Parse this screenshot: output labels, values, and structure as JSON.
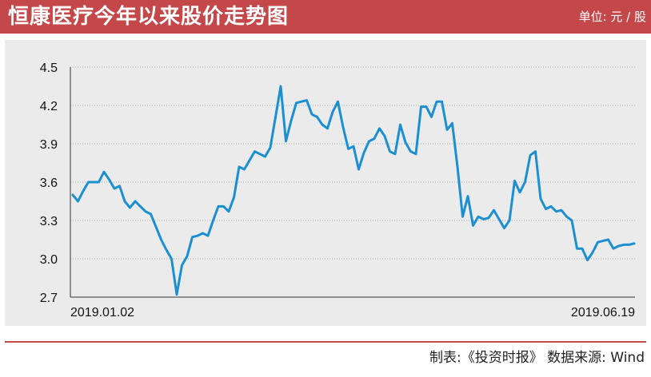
{
  "header": {
    "title": "恒康医疗今年以来股价走势图",
    "unit": "单位: 元 / 股"
  },
  "footer": {
    "source": "制表:《投资时报》 数据来源: Wind"
  },
  "colors": {
    "header_bg": "#c4474a",
    "panel_bg": "#ebebeb",
    "line": "#1c8fd0",
    "grid": "#aaaaaa"
  },
  "chart_data": {
    "type": "line",
    "x_start_label": "2019.01.02",
    "x_end_label": "2019.06.19",
    "ylim": [
      2.7,
      4.5
    ],
    "yticks": [
      "2.7",
      "3.0",
      "3.3",
      "3.6",
      "3.9",
      "4.2",
      "4.5"
    ],
    "grid": "horizontal dotted",
    "values": [
      3.5,
      3.45,
      3.53,
      3.6,
      3.6,
      3.6,
      3.68,
      3.62,
      3.55,
      3.57,
      3.45,
      3.4,
      3.45,
      3.41,
      3.37,
      3.35,
      3.25,
      3.15,
      3.07,
      3.0,
      2.72,
      2.95,
      3.02,
      3.17,
      3.18,
      3.2,
      3.18,
      3.3,
      3.41,
      3.41,
      3.37,
      3.48,
      3.72,
      3.7,
      3.77,
      3.84,
      3.82,
      3.8,
      3.87,
      4.11,
      4.35,
      3.92,
      4.08,
      4.22,
      4.23,
      4.24,
      4.13,
      4.11,
      4.05,
      4.02,
      4.15,
      4.23,
      4.03,
      3.86,
      3.88,
      3.7,
      3.83,
      3.92,
      3.94,
      4.02,
      3.96,
      3.84,
      3.82,
      4.05,
      3.91,
      3.84,
      3.82,
      4.19,
      4.19,
      4.11,
      4.23,
      4.23,
      4.01,
      4.06,
      3.72,
      3.33,
      3.49,
      3.26,
      3.33,
      3.31,
      3.32,
      3.38,
      3.31,
      3.24,
      3.3,
      3.61,
      3.52,
      3.6,
      3.81,
      3.84,
      3.47,
      3.39,
      3.41,
      3.37,
      3.38,
      3.33,
      3.3,
      3.08,
      3.08,
      2.99,
      3.05,
      3.13,
      3.14,
      3.15,
      3.08,
      3.1,
      3.11,
      3.11,
      3.12
    ]
  }
}
